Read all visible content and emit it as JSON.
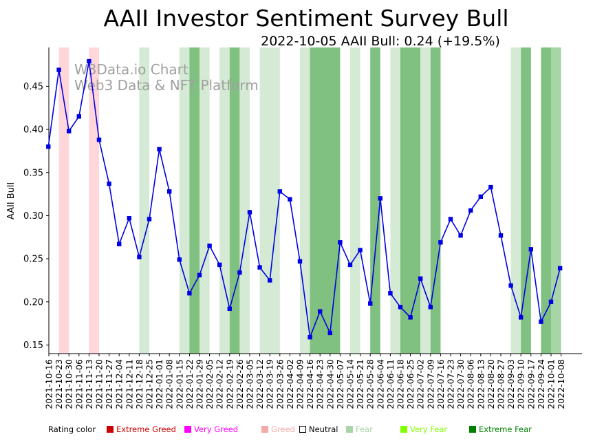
{
  "title": "AAII Investor Sentiment Survey Bull",
  "subtitle": "2022-10-05 AAII Bull: 0.24 (+19.5%)",
  "watermark": [
    "W3Data.io Chart",
    "Web3 Data & NFT Platform"
  ],
  "legend": {
    "label": "Rating color",
    "items": [
      {
        "label": "Extreme Greed",
        "color": "#cc0000"
      },
      {
        "label": "Very Greed",
        "color": "#ff00ff"
      },
      {
        "label": "Greed",
        "color": "#f4a9a9"
      },
      {
        "label": "Neutral",
        "color": "#ffffff"
      },
      {
        "label": "Fear",
        "color": "#a8d5a8"
      },
      {
        "label": "Very Fear",
        "color": "#7fff00"
      },
      {
        "label": "Extreme Fear",
        "color": "#008000"
      }
    ]
  },
  "chart_data": {
    "type": "line",
    "ylabel": "AAII Bull",
    "xlabel": "",
    "ylim": [
      0.14,
      0.495
    ],
    "yticks": [
      0.15,
      0.2,
      0.25,
      0.3,
      0.35,
      0.4,
      0.45
    ],
    "series_color": "#0000e6",
    "x": [
      "2021-10-16",
      "2021-10-23",
      "2021-10-30",
      "2021-11-06",
      "2021-11-13",
      "2021-11-20",
      "2021-11-27",
      "2021-12-04",
      "2021-12-11",
      "2021-12-18",
      "2021-12-25",
      "2022-01-01",
      "2022-01-08",
      "2022-01-15",
      "2022-01-22",
      "2022-01-29",
      "2022-02-05",
      "2022-02-12",
      "2022-02-19",
      "2022-02-26",
      "2022-03-05",
      "2022-03-12",
      "2022-03-19",
      "2022-03-26",
      "2022-04-02",
      "2022-04-09",
      "2022-04-16",
      "2022-04-23",
      "2022-04-30",
      "2022-05-07",
      "2022-05-14",
      "2022-05-21",
      "2022-05-28",
      "2022-06-04",
      "2022-06-11",
      "2022-06-18",
      "2022-06-25",
      "2022-07-02",
      "2022-07-09",
      "2022-07-16",
      "2022-07-23",
      "2022-07-30",
      "2022-08-06",
      "2022-08-13",
      "2022-08-20",
      "2022-08-27",
      "2022-09-03",
      "2022-09-10",
      "2022-09-17",
      "2022-09-24",
      "2022-10-01",
      "2022-10-08"
    ],
    "points_x": [
      -0.05,
      1,
      2,
      3,
      4,
      5,
      6,
      7,
      8,
      9,
      10,
      11,
      12,
      13,
      14,
      15,
      16,
      17,
      18,
      19,
      20,
      21,
      22,
      23,
      24,
      25,
      26,
      27,
      28,
      29,
      30,
      31,
      32,
      33,
      34,
      35,
      36,
      37,
      38,
      39,
      40,
      41,
      42,
      43,
      44,
      45,
      46,
      47,
      48,
      49,
      50,
      50.9
    ],
    "values": [
      0.38,
      0.469,
      0.398,
      0.415,
      0.479,
      0.388,
      0.337,
      0.267,
      0.297,
      0.252,
      0.296,
      0.377,
      0.328,
      0.249,
      0.21,
      0.231,
      0.265,
      0.243,
      0.192,
      0.234,
      0.304,
      0.24,
      0.225,
      0.328,
      0.319,
      0.247,
      0.159,
      0.189,
      0.164,
      0.269,
      0.243,
      0.26,
      0.198,
      0.32,
      0.21,
      0.194,
      0.182,
      0.227,
      0.194,
      0.269,
      0.296,
      0.277,
      0.306,
      0.322,
      0.333,
      0.277,
      0.219,
      0.182,
      0.261,
      0.177,
      0.2,
      0.239
    ],
    "bands": [
      {
        "x0": 1,
        "x1": 2,
        "rating": "Greed",
        "color": "#ffd6d9"
      },
      {
        "x0": 4,
        "x1": 5,
        "rating": "Greed",
        "color": "#ffd6d9"
      },
      {
        "x0": 9,
        "x1": 10,
        "rating": "Fear",
        "color": "#d4ead4"
      },
      {
        "x0": 13,
        "x1": 14,
        "rating": "Fear",
        "color": "#d4ead4"
      },
      {
        "x0": 14,
        "x1": 15,
        "rating": "Extreme Fear",
        "color": "#80c080"
      },
      {
        "x0": 15,
        "x1": 16,
        "rating": "Fear",
        "color": "#d4ead4"
      },
      {
        "x0": 17,
        "x1": 18,
        "rating": "Fear",
        "color": "#d4ead4"
      },
      {
        "x0": 18,
        "x1": 19,
        "rating": "Extreme Fear",
        "color": "#80c080"
      },
      {
        "x0": 19,
        "x1": 20,
        "rating": "Fear",
        "color": "#d4ead4"
      },
      {
        "x0": 21,
        "x1": 23,
        "rating": "Fear",
        "color": "#d4ead4"
      },
      {
        "x0": 25,
        "x1": 26,
        "rating": "Fear",
        "color": "#d4ead4"
      },
      {
        "x0": 26,
        "x1": 29,
        "rating": "Extreme Fear",
        "color": "#80c080"
      },
      {
        "x0": 30,
        "x1": 31,
        "rating": "Fear",
        "color": "#d4ead4"
      },
      {
        "x0": 32,
        "x1": 33,
        "rating": "Extreme Fear",
        "color": "#80c080"
      },
      {
        "x0": 34,
        "x1": 35,
        "rating": "Fear",
        "color": "#d4ead4"
      },
      {
        "x0": 35,
        "x1": 37,
        "rating": "Extreme Fear",
        "color": "#80c080"
      },
      {
        "x0": 37,
        "x1": 38,
        "rating": "Fear",
        "color": "#d4ead4"
      },
      {
        "x0": 38,
        "x1": 39,
        "rating": "Extreme Fear",
        "color": "#80c080"
      },
      {
        "x0": 46,
        "x1": 47,
        "rating": "Fear",
        "color": "#d4ead4"
      },
      {
        "x0": 47,
        "x1": 48,
        "rating": "Extreme Fear",
        "color": "#80c080"
      },
      {
        "x0": 49,
        "x1": 50,
        "rating": "Extreme Fear",
        "color": "#80c080"
      },
      {
        "x0": 50,
        "x1": 51,
        "rating": "Fear",
        "color": "#a8d5a8"
      }
    ]
  }
}
